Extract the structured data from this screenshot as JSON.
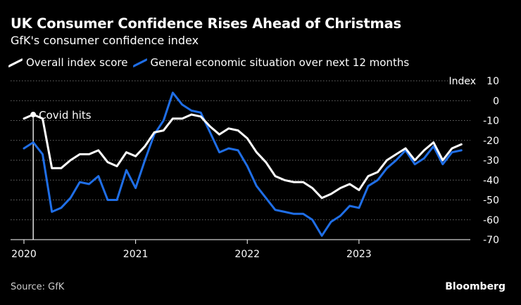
{
  "header": {
    "title": "UK Consumer Confidence Rises Ahead of Christmas",
    "subtitle": "GfK's consumer confidence index"
  },
  "footer": {
    "source": "Source: GfK",
    "brand": "Bloomberg"
  },
  "colors": {
    "background": "#000000",
    "overall": "#ffffff",
    "general": "#1f6ee6",
    "grid": "#6b6b6b"
  },
  "chart_data": {
    "type": "line",
    "title": "UK Consumer Confidence Rises Ahead of Christmas",
    "subtitle": "GfK's consumer confidence index",
    "ylabel": "Index",
    "ylim": [
      -70,
      10
    ],
    "yticks": [
      10,
      0,
      -10,
      -20,
      -30,
      -40,
      -50,
      -60,
      -70
    ],
    "ytick_labels": [
      "10",
      "0",
      "-10",
      "-20",
      "-30",
      "-40",
      "-50",
      "-60",
      "-70"
    ],
    "xlim": [
      2020.0,
      2024.0
    ],
    "xticks": [
      2020,
      2021,
      2022,
      2023
    ],
    "xtick_labels": [
      "2020",
      "2021",
      "2022",
      "2023"
    ],
    "grid": true,
    "legend_position": "top-left",
    "annotations": [
      {
        "text": "Covid hits",
        "x": 2020.083,
        "y": -7,
        "vertical_line": true
      }
    ],
    "x": [
      2020.0,
      2020.083,
      2020.167,
      2020.25,
      2020.333,
      2020.417,
      2020.5,
      2020.583,
      2020.667,
      2020.75,
      2020.833,
      2020.917,
      2021.0,
      2021.083,
      2021.167,
      2021.25,
      2021.333,
      2021.417,
      2021.5,
      2021.583,
      2021.667,
      2021.75,
      2021.833,
      2021.917,
      2022.0,
      2022.083,
      2022.167,
      2022.25,
      2022.333,
      2022.417,
      2022.5,
      2022.583,
      2022.667,
      2022.75,
      2022.833,
      2022.917,
      2023.0,
      2023.083,
      2023.167,
      2023.25,
      2023.333,
      2023.417,
      2023.5,
      2023.583,
      2023.667,
      2023.75,
      2023.833,
      2023.917
    ],
    "series": [
      {
        "name": "Overall index score",
        "color": "#ffffff",
        "values": [
          -9,
          -7,
          -9,
          -34,
          -34,
          -30,
          -27,
          -27,
          -25,
          -31,
          -33,
          -26,
          -28,
          -23,
          -16,
          -15,
          -9,
          -9,
          -7,
          -8,
          -13,
          -17,
          -14,
          -15,
          -19,
          -26,
          -31,
          -38,
          -40,
          -41,
          -41,
          -44,
          -49,
          -47,
          -44,
          -42,
          -45,
          -38,
          -36,
          -30,
          -27,
          -24,
          -30,
          -25,
          -21,
          -30,
          -24,
          -22
        ]
      },
      {
        "name": "General economic situation over next 12 months",
        "color": "#1f6ee6",
        "values": [
          -24,
          -21,
          -27,
          -56,
          -54,
          -49,
          -41,
          -42,
          -38,
          -50,
          -50,
          -35,
          -44,
          -30,
          -17,
          -10,
          4,
          -2,
          -5,
          -6,
          -16,
          -26,
          -24,
          -25,
          -33,
          -43,
          -49,
          -55,
          -56,
          -57,
          -57,
          -60,
          -68,
          -61,
          -58,
          -53,
          -54,
          -43,
          -40,
          -34,
          -30,
          -25,
          -32,
          -29,
          -23,
          -32,
          -26,
          -25
        ]
      }
    ]
  }
}
